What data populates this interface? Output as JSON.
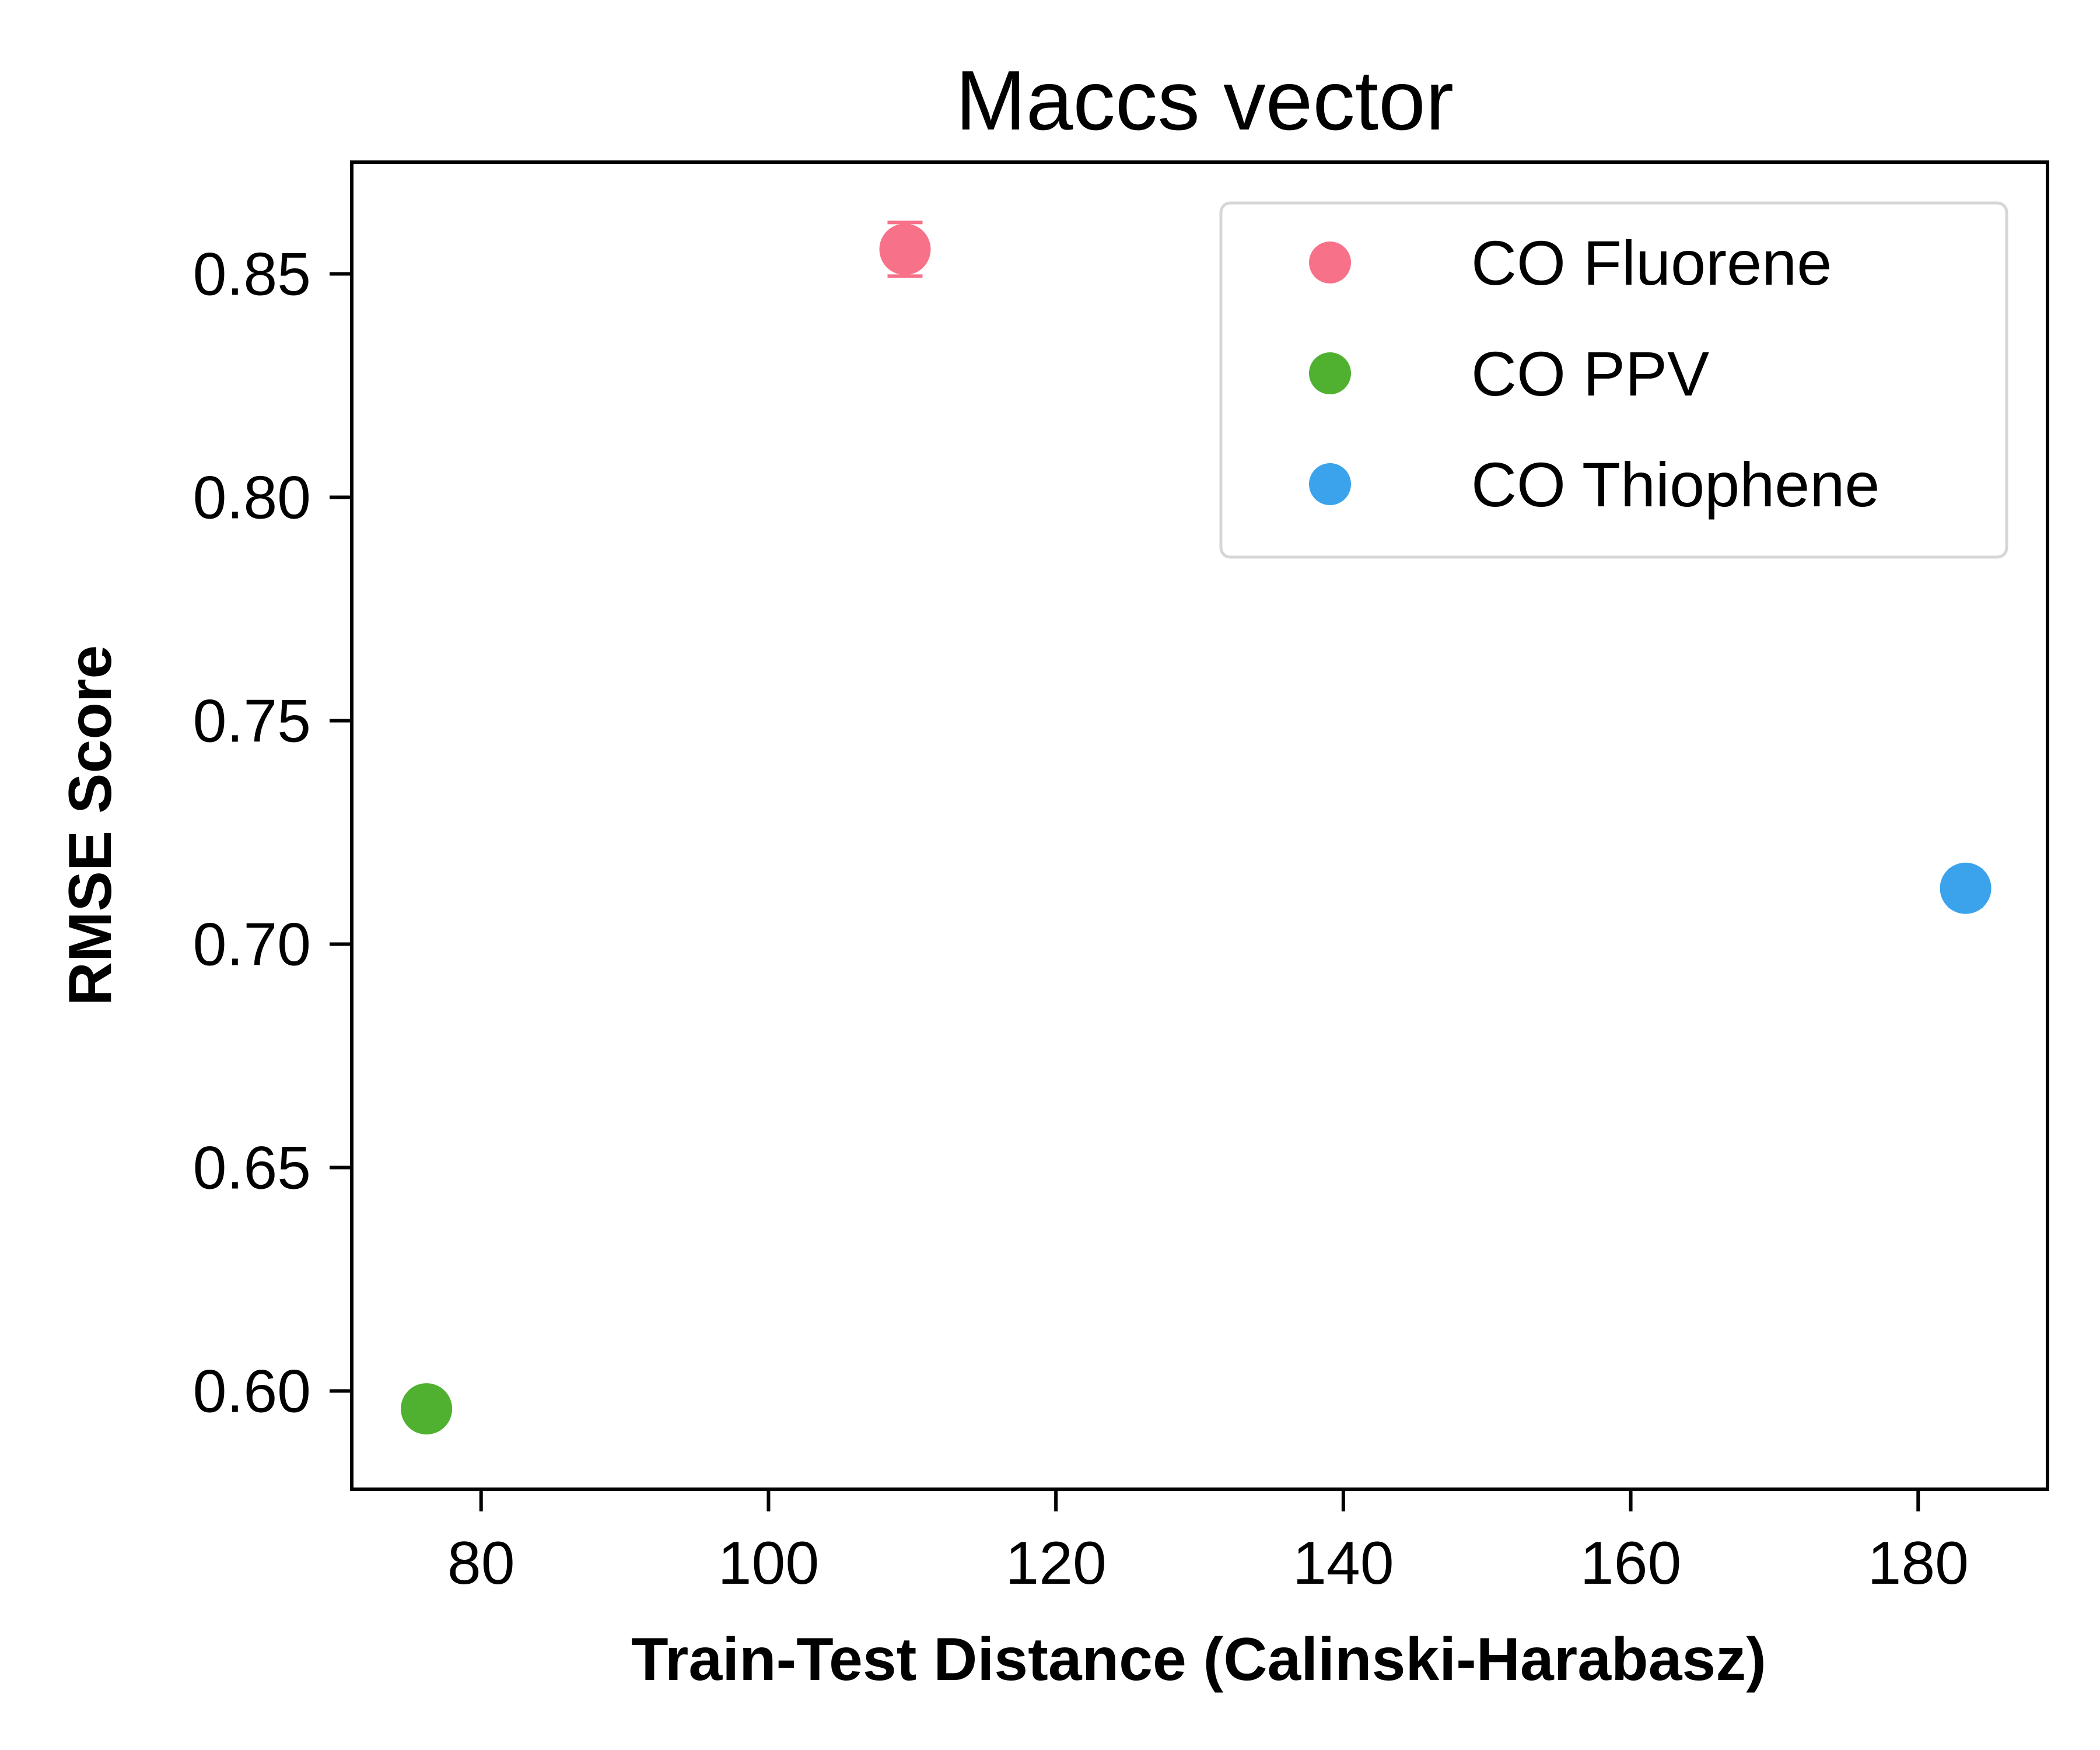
{
  "chart_data": {
    "type": "scatter",
    "title": "Maccs vector",
    "xlabel": "Train-Test Distance (Calinski-Harabasz)",
    "ylabel": "RMSE Score",
    "xlim": [
      71,
      189
    ],
    "ylim": [
      0.578,
      0.875
    ],
    "xticks": [
      80,
      100,
      120,
      140,
      160,
      180
    ],
    "yticks": [
      0.6,
      0.65,
      0.7,
      0.75,
      0.8,
      0.85
    ],
    "xtick_labels": [
      "80",
      "100",
      "120",
      "140",
      "160",
      "180"
    ],
    "ytick_labels": [
      "0.60",
      "0.65",
      "0.70",
      "0.75",
      "0.80",
      "0.85"
    ],
    "grid": false,
    "legend_position": "top-right",
    "series": [
      {
        "name": "CO Fluorene",
        "color": "#f77189",
        "x": [
          109.5
        ],
        "y": [
          0.8555
        ],
        "yerr": [
          0.006
        ]
      },
      {
        "name": "CO PPV",
        "color": "#50b131",
        "x": [
          76.2
        ],
        "y": [
          0.596
        ],
        "yerr": [
          0.0035
        ]
      },
      {
        "name": "CO Thiophene",
        "color": "#3ba3ec",
        "x": [
          183.3
        ],
        "y": [
          0.7125
        ],
        "yerr": [
          0.004
        ]
      }
    ]
  }
}
